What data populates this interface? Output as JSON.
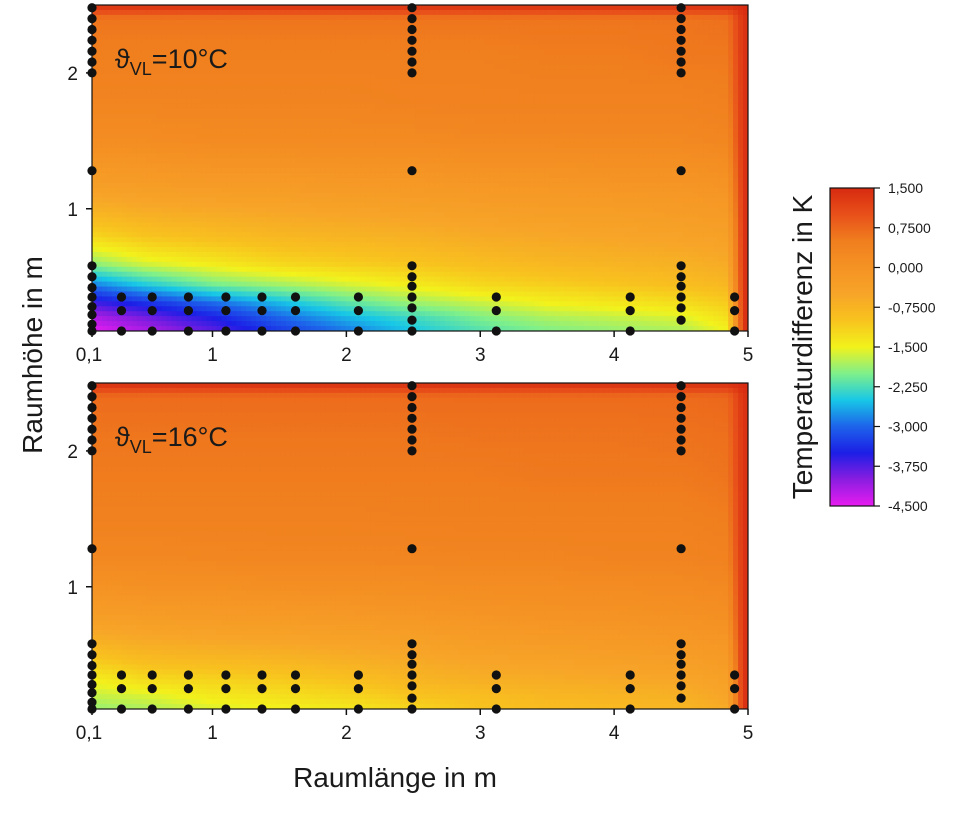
{
  "chart_data": {
    "type": "heatmap",
    "xlabel": "Raumlänge in m",
    "ylabel": "Raumhöhe in m",
    "colorbar": {
      "label": "Temperaturdifferenz in K",
      "range": [
        -4.5,
        1.5
      ],
      "ticks": [
        "1,500",
        "0,7500",
        "0,000",
        "-0,7500",
        "-1,500",
        "-2,250",
        "-3,000",
        "-3,750",
        "-4,500"
      ],
      "tick_values": [
        1.5,
        0.75,
        0,
        -0.75,
        -1.5,
        -2.25,
        -3.0,
        -3.75,
        -4.5
      ],
      "colormap": [
        "#e81cf0",
        "#8a1de0",
        "#1c1ee6",
        "#1d63ea",
        "#18c8e6",
        "#7ff08a",
        "#f2f21c",
        "#f8c31e",
        "#f7a428",
        "#f59324",
        "#f07e1e",
        "#e8501a",
        "#d72a10"
      ]
    },
    "xlim": [
      0.1,
      5
    ],
    "ylim": [
      0.1,
      2.5
    ],
    "xticks": [
      0.1,
      1,
      2,
      3,
      4,
      5
    ],
    "xtick_labels": [
      "0,1",
      "1",
      "2",
      "3",
      "4",
      "5"
    ],
    "yticks": [
      1,
      2
    ],
    "ytick_labels": [
      "1",
      "2"
    ],
    "panels": [
      {
        "label_main": "ϑ",
        "label_sub": "VL",
        "label_rest": "=10°C",
        "field": {
          "x": [
            0.1,
            0.5,
            1.0,
            1.5,
            2.0,
            2.5,
            3.0,
            3.5,
            4.0,
            4.5,
            4.85,
            4.97
          ],
          "y": [
            0.1,
            0.2,
            0.3,
            0.45,
            0.6,
            0.8,
            1.0,
            1.2,
            1.5,
            1.8,
            2.1,
            2.4,
            2.5
          ],
          "values": [
            [
              -4.5,
              -4.2,
              -3.8,
              -3.3,
              -2.9,
              -2.5,
              -2.2,
              -2.0,
              -1.9,
              -1.8,
              -1.5,
              1.4
            ],
            [
              -4.2,
              -3.9,
              -3.5,
              -3.0,
              -2.6,
              -2.3,
              -2.0,
              -1.8,
              -1.7,
              -1.6,
              -1.3,
              1.4
            ],
            [
              -3.7,
              -3.4,
              -3.0,
              -2.6,
              -2.2,
              -1.9,
              -1.7,
              -1.5,
              -1.4,
              -1.3,
              -1.1,
              1.4
            ],
            [
              -2.8,
              -2.4,
              -2.0,
              -1.8,
              -1.6,
              -1.4,
              -1.2,
              -1.1,
              -1.0,
              -0.9,
              -0.8,
              1.4
            ],
            [
              -1.9,
              -1.6,
              -1.4,
              -1.2,
              -1.1,
              -1.0,
              -0.9,
              -0.8,
              -0.75,
              -0.7,
              -0.6,
              1.4
            ],
            [
              -1.2,
              -1.0,
              -0.9,
              -0.8,
              -0.75,
              -0.7,
              -0.6,
              -0.55,
              -0.5,
              -0.45,
              -0.4,
              1.4
            ],
            [
              -0.7,
              -0.6,
              -0.55,
              -0.5,
              -0.45,
              -0.4,
              -0.35,
              -0.3,
              -0.3,
              -0.25,
              -0.2,
              1.4
            ],
            [
              -0.3,
              -0.25,
              -0.2,
              -0.2,
              -0.15,
              -0.15,
              -0.1,
              -0.1,
              -0.05,
              -0.05,
              0.0,
              1.4
            ],
            [
              0.15,
              0.15,
              0.2,
              0.2,
              0.2,
              0.2,
              0.25,
              0.25,
              0.25,
              0.25,
              0.3,
              1.4
            ],
            [
              0.35,
              0.35,
              0.35,
              0.35,
              0.35,
              0.4,
              0.4,
              0.4,
              0.4,
              0.4,
              0.45,
              1.4
            ],
            [
              0.45,
              0.45,
              0.45,
              0.45,
              0.45,
              0.45,
              0.45,
              0.5,
              0.5,
              0.55,
              0.55,
              1.4
            ],
            [
              0.6,
              0.6,
              0.6,
              0.6,
              0.6,
              0.6,
              0.6,
              0.6,
              0.6,
              0.6,
              0.65,
              1.4
            ],
            [
              1.45,
              1.45,
              1.45,
              1.45,
              1.45,
              1.45,
              1.45,
              1.45,
              1.45,
              1.45,
              1.45,
              1.5
            ]
          ]
        },
        "sensors": [
          [
            0.1,
            0.1
          ],
          [
            0.1,
            0.15
          ],
          [
            0.1,
            0.22
          ],
          [
            0.1,
            0.28
          ],
          [
            0.1,
            0.35
          ],
          [
            0.1,
            0.42
          ],
          [
            0.1,
            0.5
          ],
          [
            0.1,
            0.58
          ],
          [
            0.1,
            1.28
          ],
          [
            0.1,
            2.0
          ],
          [
            0.1,
            2.08
          ],
          [
            0.1,
            2.16
          ],
          [
            0.1,
            2.24
          ],
          [
            0.1,
            2.32
          ],
          [
            0.1,
            2.4
          ],
          [
            0.1,
            2.48
          ],
          [
            0.32,
            0.1
          ],
          [
            0.32,
            0.25
          ],
          [
            0.32,
            0.35
          ],
          [
            0.55,
            0.1
          ],
          [
            0.55,
            0.25
          ],
          [
            0.55,
            0.35
          ],
          [
            0.82,
            0.1
          ],
          [
            0.82,
            0.25
          ],
          [
            0.82,
            0.35
          ],
          [
            1.1,
            0.1
          ],
          [
            1.1,
            0.25
          ],
          [
            1.1,
            0.35
          ],
          [
            1.37,
            0.1
          ],
          [
            1.37,
            0.25
          ],
          [
            1.37,
            0.35
          ],
          [
            1.62,
            0.1
          ],
          [
            1.62,
            0.25
          ],
          [
            1.62,
            0.35
          ],
          [
            2.09,
            0.1
          ],
          [
            2.09,
            0.25
          ],
          [
            2.09,
            0.35
          ],
          [
            2.49,
            0.1
          ],
          [
            2.49,
            0.18
          ],
          [
            2.49,
            0.27
          ],
          [
            2.49,
            0.35
          ],
          [
            2.49,
            0.43
          ],
          [
            2.49,
            0.5
          ],
          [
            2.49,
            0.58
          ],
          [
            2.49,
            1.28
          ],
          [
            2.49,
            2.0
          ],
          [
            2.49,
            2.08
          ],
          [
            2.49,
            2.16
          ],
          [
            2.49,
            2.24
          ],
          [
            2.49,
            2.32
          ],
          [
            2.49,
            2.4
          ],
          [
            2.49,
            2.48
          ],
          [
            3.12,
            0.1
          ],
          [
            3.12,
            0.25
          ],
          [
            3.12,
            0.35
          ],
          [
            4.12,
            0.1
          ],
          [
            4.12,
            0.25
          ],
          [
            4.12,
            0.35
          ],
          [
            4.5,
            0.18
          ],
          [
            4.5,
            0.27
          ],
          [
            4.5,
            0.35
          ],
          [
            4.5,
            0.43
          ],
          [
            4.5,
            0.5
          ],
          [
            4.5,
            0.58
          ],
          [
            4.5,
            1.28
          ],
          [
            4.5,
            2.0
          ],
          [
            4.5,
            2.08
          ],
          [
            4.5,
            2.16
          ],
          [
            4.5,
            2.24
          ],
          [
            4.5,
            2.32
          ],
          [
            4.5,
            2.4
          ],
          [
            4.5,
            2.48
          ],
          [
            4.9,
            0.1
          ],
          [
            4.9,
            0.25
          ],
          [
            4.9,
            0.35
          ]
        ]
      },
      {
        "label_main": "ϑ",
        "label_sub": "VL",
        "label_rest": "=16°C",
        "field": {
          "x": [
            0.1,
            0.5,
            1.0,
            1.5,
            2.0,
            2.5,
            3.0,
            3.5,
            4.0,
            4.5,
            4.85,
            4.97
          ],
          "y": [
            0.1,
            0.2,
            0.3,
            0.45,
            0.6,
            0.8,
            1.0,
            1.2,
            1.5,
            1.8,
            2.1,
            2.4,
            2.5
          ],
          "values": [
            [
              -1.9,
              -1.8,
              -1.6,
              -1.5,
              -1.4,
              -1.2,
              -1.0,
              -0.9,
              -0.85,
              -0.8,
              -0.6,
              1.4
            ],
            [
              -1.7,
              -1.6,
              -1.4,
              -1.3,
              -1.2,
              -1.0,
              -0.9,
              -0.8,
              -0.75,
              -0.7,
              -0.5,
              1.4
            ],
            [
              -1.5,
              -1.3,
              -1.2,
              -1.1,
              -1.0,
              -0.8,
              -0.7,
              -0.65,
              -0.6,
              -0.55,
              -0.4,
              1.4
            ],
            [
              -1.1,
              -0.9,
              -0.85,
              -0.8,
              -0.7,
              -0.6,
              -0.5,
              -0.45,
              -0.4,
              -0.35,
              -0.25,
              1.4
            ],
            [
              -0.7,
              -0.6,
              -0.55,
              -0.5,
              -0.45,
              -0.4,
              -0.3,
              -0.25,
              -0.2,
              -0.15,
              -0.1,
              1.4
            ],
            [
              -0.3,
              -0.25,
              -0.2,
              -0.2,
              -0.15,
              -0.1,
              -0.05,
              0.0,
              0.0,
              0.05,
              0.1,
              1.4
            ],
            [
              0.0,
              0.05,
              0.05,
              0.1,
              0.1,
              0.12,
              0.15,
              0.15,
              0.18,
              0.2,
              0.25,
              1.4
            ],
            [
              0.25,
              0.25,
              0.28,
              0.3,
              0.3,
              0.3,
              0.32,
              0.32,
              0.35,
              0.35,
              0.4,
              1.4
            ],
            [
              0.42,
              0.42,
              0.42,
              0.42,
              0.42,
              0.45,
              0.45,
              0.45,
              0.45,
              0.45,
              0.5,
              1.4
            ],
            [
              0.52,
              0.52,
              0.52,
              0.52,
              0.52,
              0.52,
              0.52,
              0.55,
              0.55,
              0.55,
              0.6,
              1.4
            ],
            [
              0.58,
              0.58,
              0.58,
              0.58,
              0.58,
              0.58,
              0.6,
              0.6,
              0.6,
              0.62,
              0.65,
              1.4
            ],
            [
              0.7,
              0.7,
              0.7,
              0.7,
              0.7,
              0.7,
              0.7,
              0.7,
              0.7,
              0.7,
              0.75,
              1.4
            ],
            [
              1.45,
              1.45,
              1.45,
              1.45,
              1.45,
              1.45,
              1.45,
              1.45,
              1.45,
              1.45,
              1.45,
              1.5
            ]
          ]
        },
        "sensors": [
          [
            0.1,
            0.1
          ],
          [
            0.1,
            0.15
          ],
          [
            0.1,
            0.22
          ],
          [
            0.1,
            0.28
          ],
          [
            0.1,
            0.35
          ],
          [
            0.1,
            0.42
          ],
          [
            0.1,
            0.5
          ],
          [
            0.1,
            0.58
          ],
          [
            0.1,
            1.28
          ],
          [
            0.1,
            2.0
          ],
          [
            0.1,
            2.08
          ],
          [
            0.1,
            2.16
          ],
          [
            0.1,
            2.24
          ],
          [
            0.1,
            2.32
          ],
          [
            0.1,
            2.4
          ],
          [
            0.1,
            2.48
          ],
          [
            0.32,
            0.1
          ],
          [
            0.32,
            0.25
          ],
          [
            0.32,
            0.35
          ],
          [
            0.55,
            0.1
          ],
          [
            0.55,
            0.25
          ],
          [
            0.55,
            0.35
          ],
          [
            0.82,
            0.1
          ],
          [
            0.82,
            0.25
          ],
          [
            0.82,
            0.35
          ],
          [
            1.1,
            0.1
          ],
          [
            1.1,
            0.25
          ],
          [
            1.1,
            0.35
          ],
          [
            1.37,
            0.1
          ],
          [
            1.37,
            0.25
          ],
          [
            1.37,
            0.35
          ],
          [
            1.62,
            0.1
          ],
          [
            1.62,
            0.25
          ],
          [
            1.62,
            0.35
          ],
          [
            2.09,
            0.1
          ],
          [
            2.09,
            0.25
          ],
          [
            2.09,
            0.35
          ],
          [
            2.49,
            0.1
          ],
          [
            2.49,
            0.18
          ],
          [
            2.49,
            0.27
          ],
          [
            2.49,
            0.35
          ],
          [
            2.49,
            0.43
          ],
          [
            2.49,
            0.5
          ],
          [
            2.49,
            0.58
          ],
          [
            2.49,
            1.28
          ],
          [
            2.49,
            2.0
          ],
          [
            2.49,
            2.08
          ],
          [
            2.49,
            2.16
          ],
          [
            2.49,
            2.24
          ],
          [
            2.49,
            2.32
          ],
          [
            2.49,
            2.4
          ],
          [
            2.49,
            2.48
          ],
          [
            3.12,
            0.1
          ],
          [
            3.12,
            0.25
          ],
          [
            3.12,
            0.35
          ],
          [
            4.12,
            0.1
          ],
          [
            4.12,
            0.25
          ],
          [
            4.12,
            0.35
          ],
          [
            4.5,
            0.18
          ],
          [
            4.5,
            0.27
          ],
          [
            4.5,
            0.35
          ],
          [
            4.5,
            0.43
          ],
          [
            4.5,
            0.5
          ],
          [
            4.5,
            0.58
          ],
          [
            4.5,
            1.28
          ],
          [
            4.5,
            2.0
          ],
          [
            4.5,
            2.08
          ],
          [
            4.5,
            2.16
          ],
          [
            4.5,
            2.24
          ],
          [
            4.5,
            2.32
          ],
          [
            4.5,
            2.4
          ],
          [
            4.5,
            2.48
          ],
          [
            4.9,
            0.1
          ],
          [
            4.9,
            0.25
          ],
          [
            4.9,
            0.35
          ]
        ]
      }
    ]
  }
}
